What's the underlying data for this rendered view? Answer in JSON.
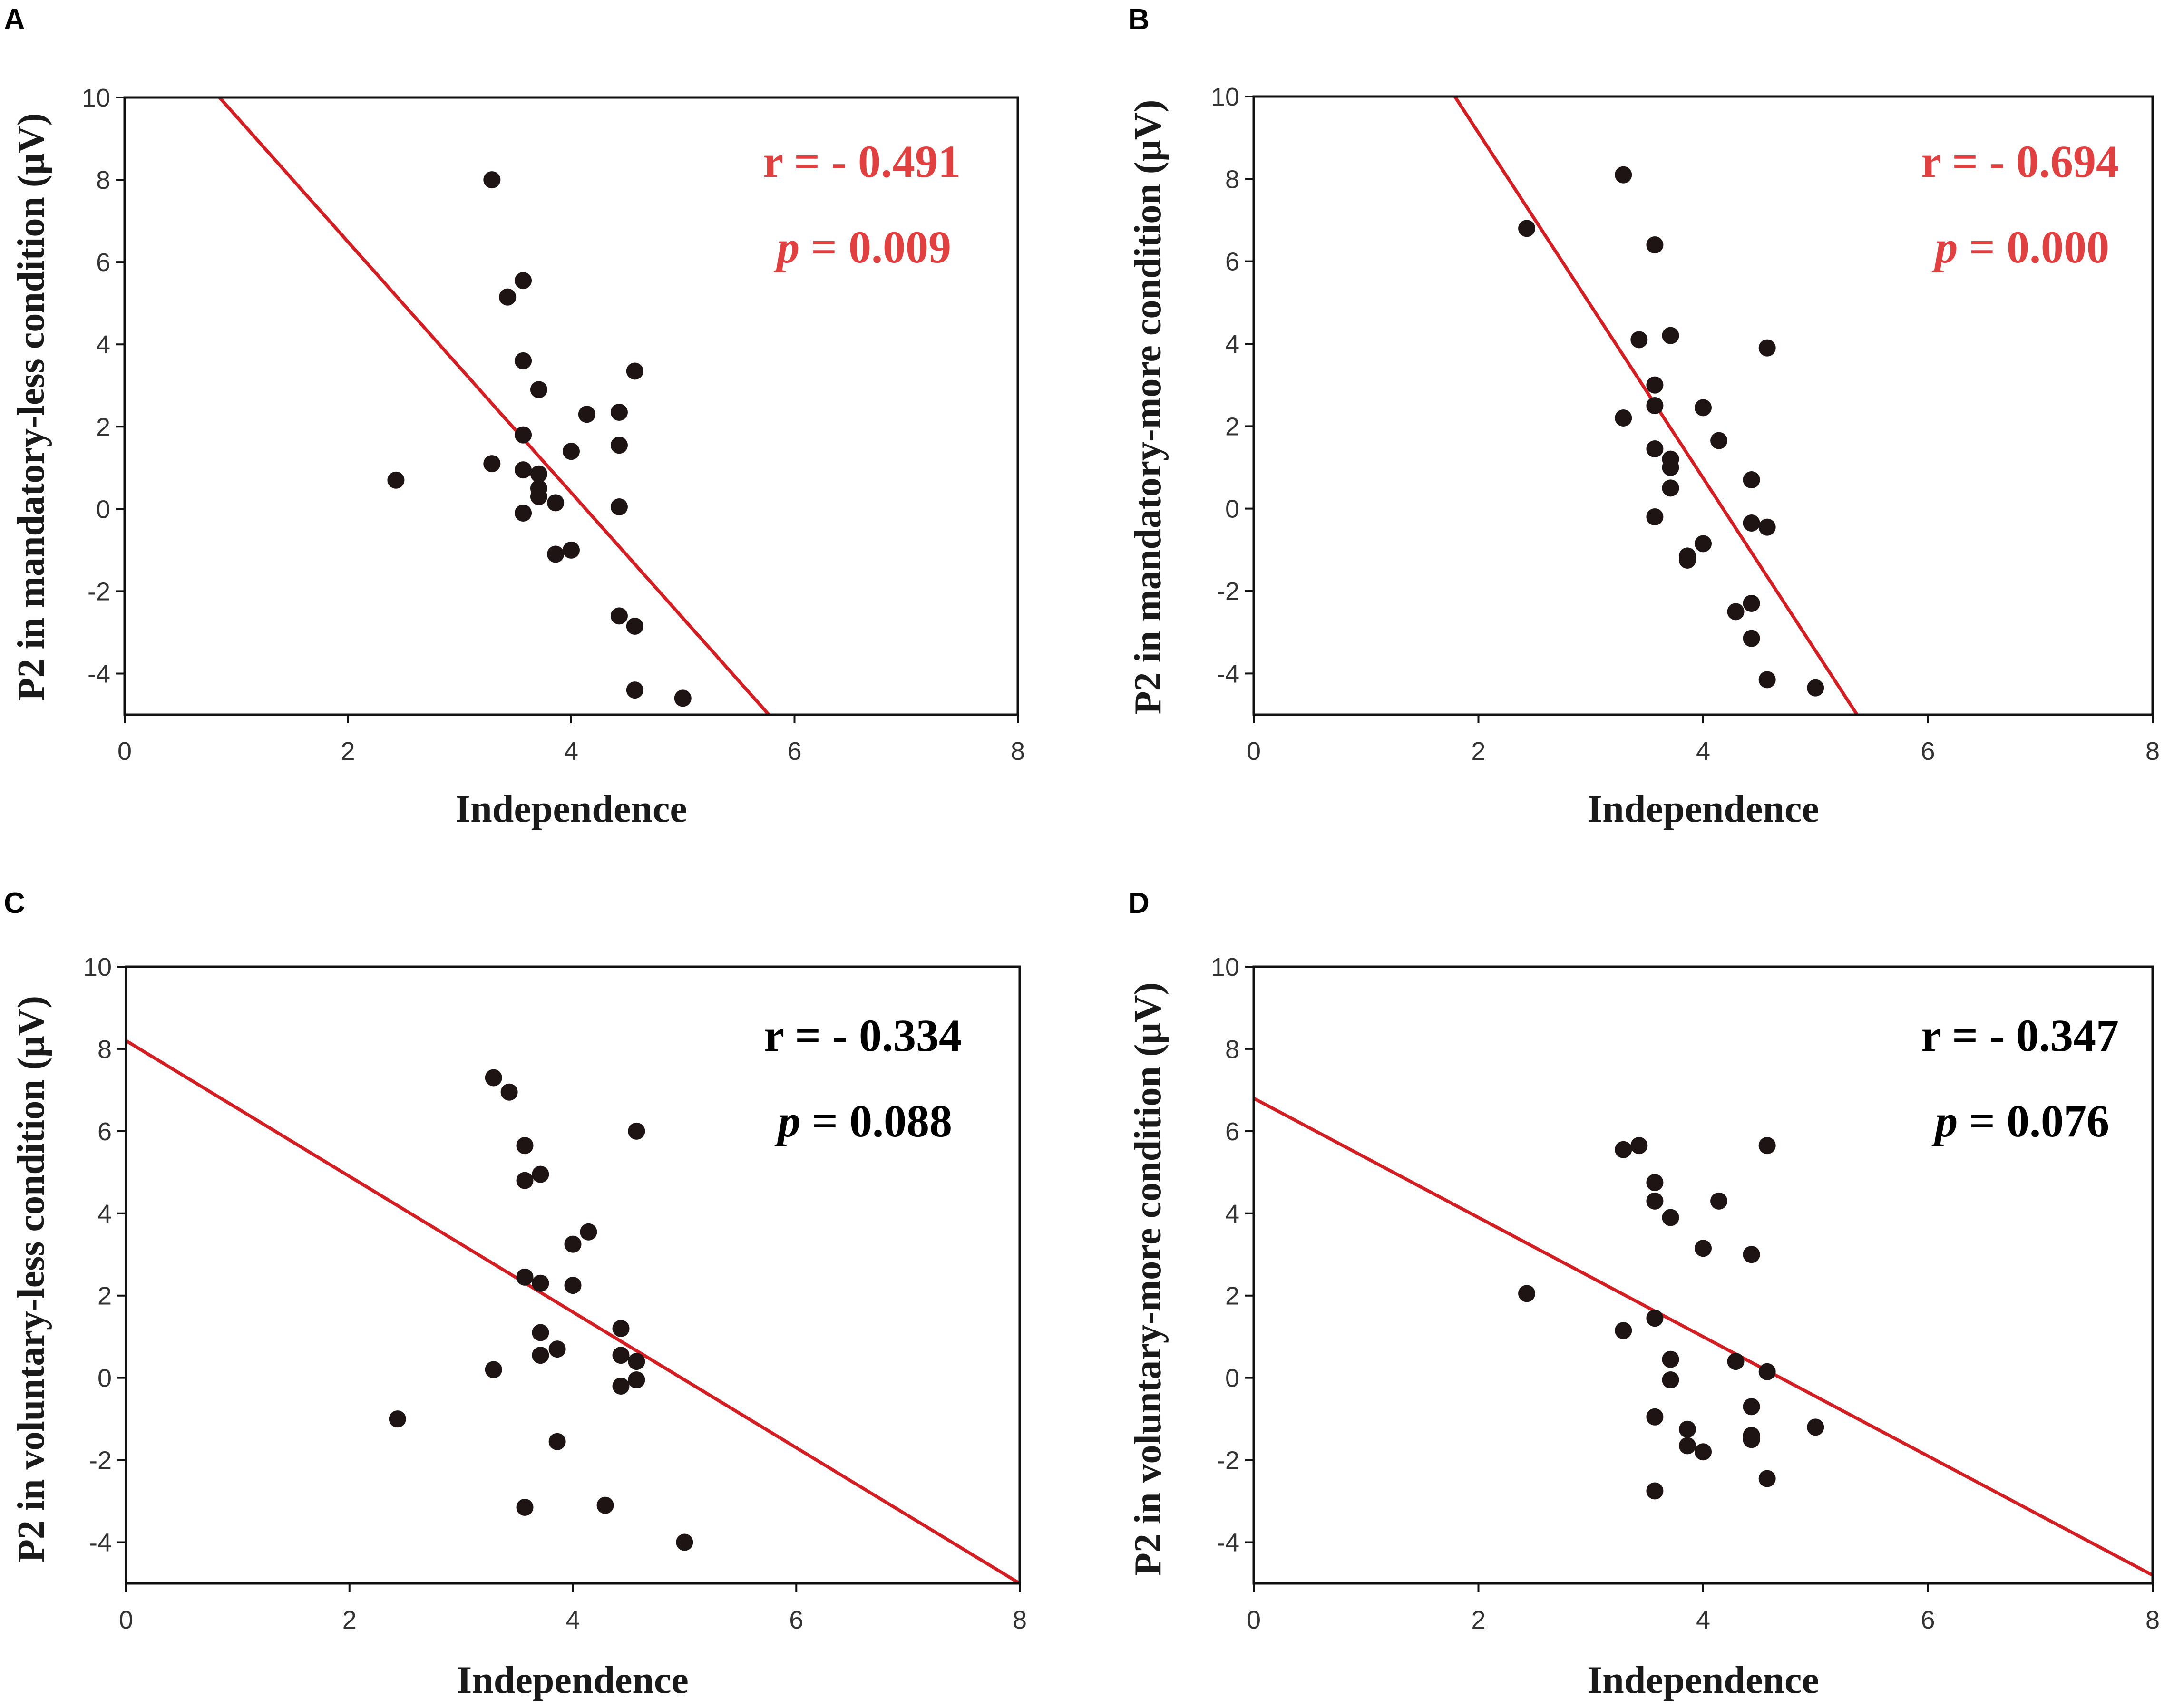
{
  "figure": {
    "colors": {
      "fit_line": "#d11f24",
      "points": "#1e1414",
      "axes": "#111111",
      "stat_highlight": "#e04040",
      "stat_plain": "#000000"
    }
  },
  "chart_data": [
    {
      "type": "scatter",
      "panel": "A",
      "xlabel": "Independence",
      "ylabel": "P2 in mandatory-less condition (μV)",
      "xlim": [
        0,
        8
      ],
      "ylim": [
        -5,
        10
      ],
      "xticks": [
        0,
        2,
        4,
        6,
        8
      ],
      "yticks": [
        -4,
        -2,
        0,
        2,
        4,
        6,
        8,
        10
      ],
      "r_label": "r = - 0.491",
      "p_letter": "p",
      "p_value": " = 0.009",
      "stat_color": "#e04040",
      "fit_line": [
        [
          0.85,
          10
        ],
        [
          5.77,
          -5
        ]
      ],
      "points": [
        [
          2.43,
          0.7
        ],
        [
          3.29,
          8.0
        ],
        [
          3.29,
          1.1
        ],
        [
          3.43,
          5.15
        ],
        [
          3.57,
          5.55
        ],
        [
          3.57,
          3.6
        ],
        [
          3.57,
          1.8
        ],
        [
          3.57,
          0.95
        ],
        [
          3.57,
          -0.1
        ],
        [
          3.71,
          2.9
        ],
        [
          3.71,
          0.85
        ],
        [
          3.71,
          0.5
        ],
        [
          3.71,
          0.3
        ],
        [
          3.86,
          0.15
        ],
        [
          3.86,
          -1.1
        ],
        [
          4.0,
          1.4
        ],
        [
          4.0,
          -1.0
        ],
        [
          4.14,
          2.3
        ],
        [
          4.43,
          2.35
        ],
        [
          4.43,
          1.55
        ],
        [
          4.43,
          0.05
        ],
        [
          4.43,
          -2.6
        ],
        [
          4.57,
          3.35
        ],
        [
          4.57,
          -2.85
        ],
        [
          4.57,
          -4.4
        ],
        [
          5.0,
          -4.6
        ]
      ]
    },
    {
      "type": "scatter",
      "panel": "B",
      "xlabel": "Independence",
      "ylabel": "P2 in mandatory-more condition (μV)",
      "xlim": [
        0,
        8
      ],
      "ylim": [
        -5,
        10
      ],
      "xticks": [
        0,
        2,
        4,
        6,
        8
      ],
      "yticks": [
        -4,
        -2,
        0,
        2,
        4,
        6,
        8,
        10
      ],
      "r_label": "r = - 0.694",
      "p_letter": "p",
      "p_value": " = 0.000",
      "stat_color": "#e04040",
      "fit_line": [
        [
          1.79,
          10
        ],
        [
          5.37,
          -5
        ]
      ],
      "points": [
        [
          2.43,
          6.8
        ],
        [
          3.29,
          8.1
        ],
        [
          3.29,
          2.2
        ],
        [
          3.43,
          4.1
        ],
        [
          3.57,
          6.4
        ],
        [
          3.57,
          3.0
        ],
        [
          3.57,
          2.5
        ],
        [
          3.57,
          1.45
        ],
        [
          3.57,
          -0.2
        ],
        [
          3.71,
          4.2
        ],
        [
          3.71,
          1.2
        ],
        [
          3.71,
          1.0
        ],
        [
          3.71,
          0.5
        ],
        [
          3.86,
          -1.15
        ],
        [
          3.86,
          -1.25
        ],
        [
          4.0,
          2.45
        ],
        [
          4.0,
          -0.85
        ],
        [
          4.14,
          1.65
        ],
        [
          4.29,
          -2.5
        ],
        [
          4.43,
          0.7
        ],
        [
          4.43,
          -0.35
        ],
        [
          4.43,
          -2.3
        ],
        [
          4.43,
          -3.15
        ],
        [
          4.57,
          3.9
        ],
        [
          4.57,
          -0.45
        ],
        [
          4.57,
          -4.15
        ],
        [
          5.0,
          -4.35
        ]
      ]
    },
    {
      "type": "scatter",
      "panel": "C",
      "xlabel": "Independence",
      "ylabel": "P2 in voluntary-less condition (μV)",
      "xlim": [
        0,
        8
      ],
      "ylim": [
        -5,
        10
      ],
      "xticks": [
        0,
        2,
        4,
        6,
        8
      ],
      "yticks": [
        -4,
        -2,
        0,
        2,
        4,
        6,
        8,
        10
      ],
      "r_label": "r = - 0.334",
      "p_letter": "p",
      "p_value": " = 0.088",
      "stat_color": "#000000",
      "fit_line": [
        [
          0,
          8.2
        ],
        [
          8,
          -5.0
        ]
      ],
      "points": [
        [
          2.43,
          -1.0
        ],
        [
          3.29,
          7.3
        ],
        [
          3.29,
          0.2
        ],
        [
          3.43,
          6.95
        ],
        [
          3.57,
          5.65
        ],
        [
          3.57,
          4.8
        ],
        [
          3.57,
          2.45
        ],
        [
          3.57,
          -3.15
        ],
        [
          3.71,
          4.95
        ],
        [
          3.71,
          2.3
        ],
        [
          3.71,
          1.1
        ],
        [
          3.71,
          0.55
        ],
        [
          3.86,
          0.7
        ],
        [
          3.86,
          -1.55
        ],
        [
          4.0,
          3.25
        ],
        [
          4.0,
          2.25
        ],
        [
          4.14,
          3.55
        ],
        [
          4.29,
          -3.1
        ],
        [
          4.43,
          1.2
        ],
        [
          4.43,
          0.55
        ],
        [
          4.43,
          -0.2
        ],
        [
          4.57,
          6.0
        ],
        [
          4.57,
          0.4
        ],
        [
          4.57,
          -0.05
        ],
        [
          5.0,
          -4.0
        ]
      ]
    },
    {
      "type": "scatter",
      "panel": "D",
      "xlabel": "Independence",
      "ylabel": "P2 in voluntary-more condition (μV)",
      "xlim": [
        0,
        8
      ],
      "ylim": [
        -5,
        10
      ],
      "xticks": [
        0,
        2,
        4,
        6,
        8
      ],
      "yticks": [
        -4,
        -2,
        0,
        2,
        4,
        6,
        8,
        10
      ],
      "r_label": "r = - 0.347",
      "p_letter": "p",
      "p_value": " = 0.076",
      "stat_color": "#000000",
      "fit_line": [
        [
          0,
          6.8
        ],
        [
          8,
          -4.8
        ]
      ],
      "points": [
        [
          2.43,
          2.05
        ],
        [
          3.29,
          5.55
        ],
        [
          3.29,
          1.15
        ],
        [
          3.43,
          5.65
        ],
        [
          3.57,
          4.75
        ],
        [
          3.57,
          4.3
        ],
        [
          3.57,
          1.45
        ],
        [
          3.57,
          -0.95
        ],
        [
          3.57,
          -2.75
        ],
        [
          3.71,
          3.9
        ],
        [
          3.71,
          0.45
        ],
        [
          3.71,
          -0.05
        ],
        [
          3.86,
          -1.25
        ],
        [
          3.86,
          -1.65
        ],
        [
          4.0,
          3.15
        ],
        [
          4.0,
          -1.8
        ],
        [
          4.14,
          4.3
        ],
        [
          4.29,
          0.4
        ],
        [
          4.43,
          3.0
        ],
        [
          4.43,
          -0.7
        ],
        [
          4.43,
          -1.4
        ],
        [
          4.43,
          -1.5
        ],
        [
          4.57,
          5.65
        ],
        [
          4.57,
          0.15
        ],
        [
          4.57,
          -2.45
        ],
        [
          5.0,
          -1.2
        ]
      ]
    }
  ]
}
